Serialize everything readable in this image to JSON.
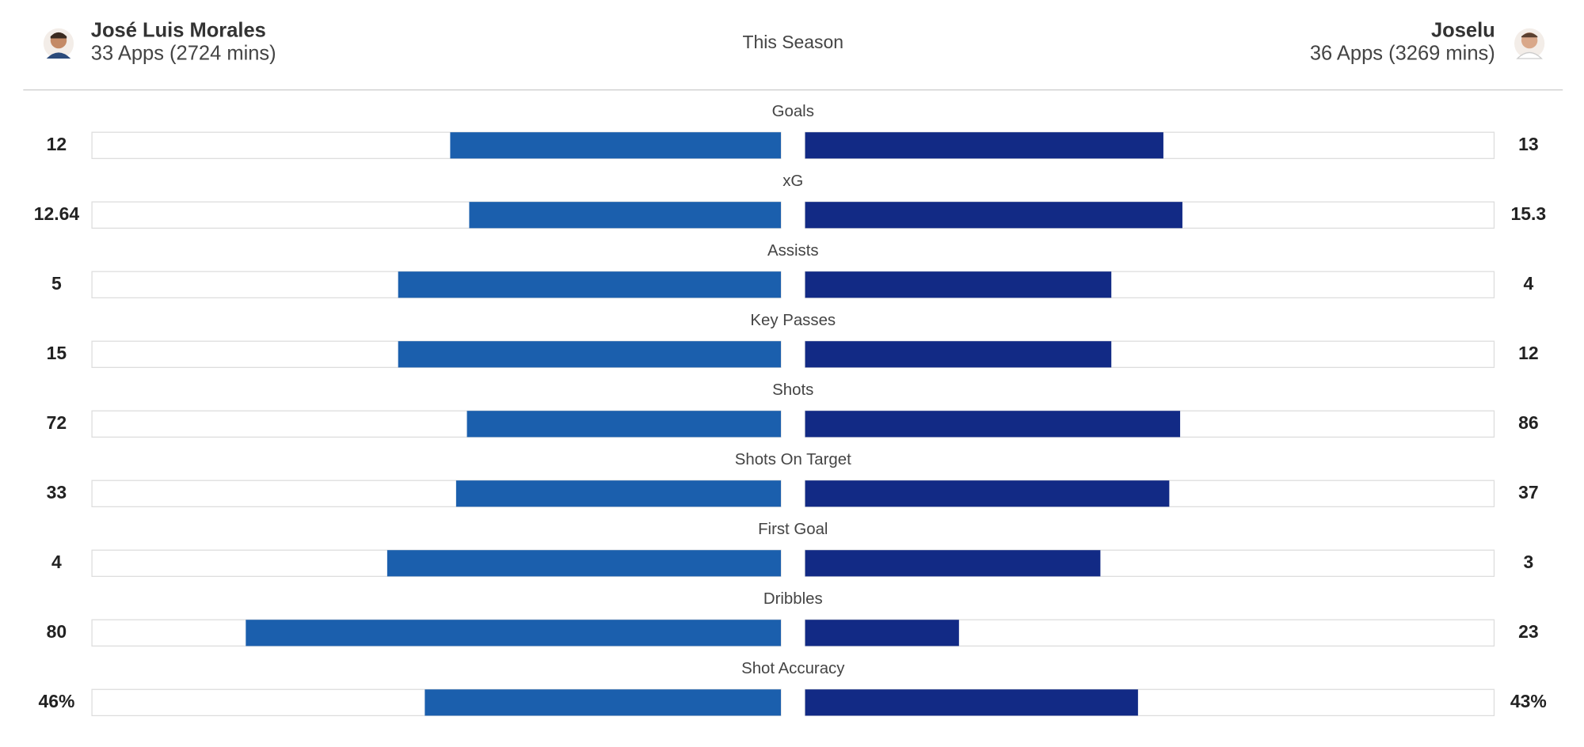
{
  "chart_data": {
    "type": "comparison-bar",
    "title": "This Season",
    "categories": [
      "Goals",
      "xG",
      "Assists",
      "Key Passes",
      "Shots",
      "Shots On Target",
      "First Goal",
      "Dribbles",
      "Shot Accuracy"
    ],
    "series": [
      {
        "name": "José Luis Morales",
        "apps": "33 Apps (2724 mins)",
        "color": "#1b5fad",
        "values": [
          12,
          12.64,
          5,
          15,
          72,
          33,
          4,
          80,
          46
        ],
        "value_labels": [
          "12",
          "12.64",
          "5",
          "15",
          "72",
          "33",
          "4",
          "80",
          "46%"
        ]
      },
      {
        "name": "Joselu",
        "apps": "36 Apps (3269 mins)",
        "color": "#122a85",
        "values": [
          13,
          15.3,
          4,
          12,
          86,
          37,
          3,
          23,
          43
        ],
        "value_labels": [
          "13",
          "15.3",
          "4",
          "12",
          "86",
          "37",
          "3",
          "23",
          "43%"
        ]
      }
    ]
  }
}
